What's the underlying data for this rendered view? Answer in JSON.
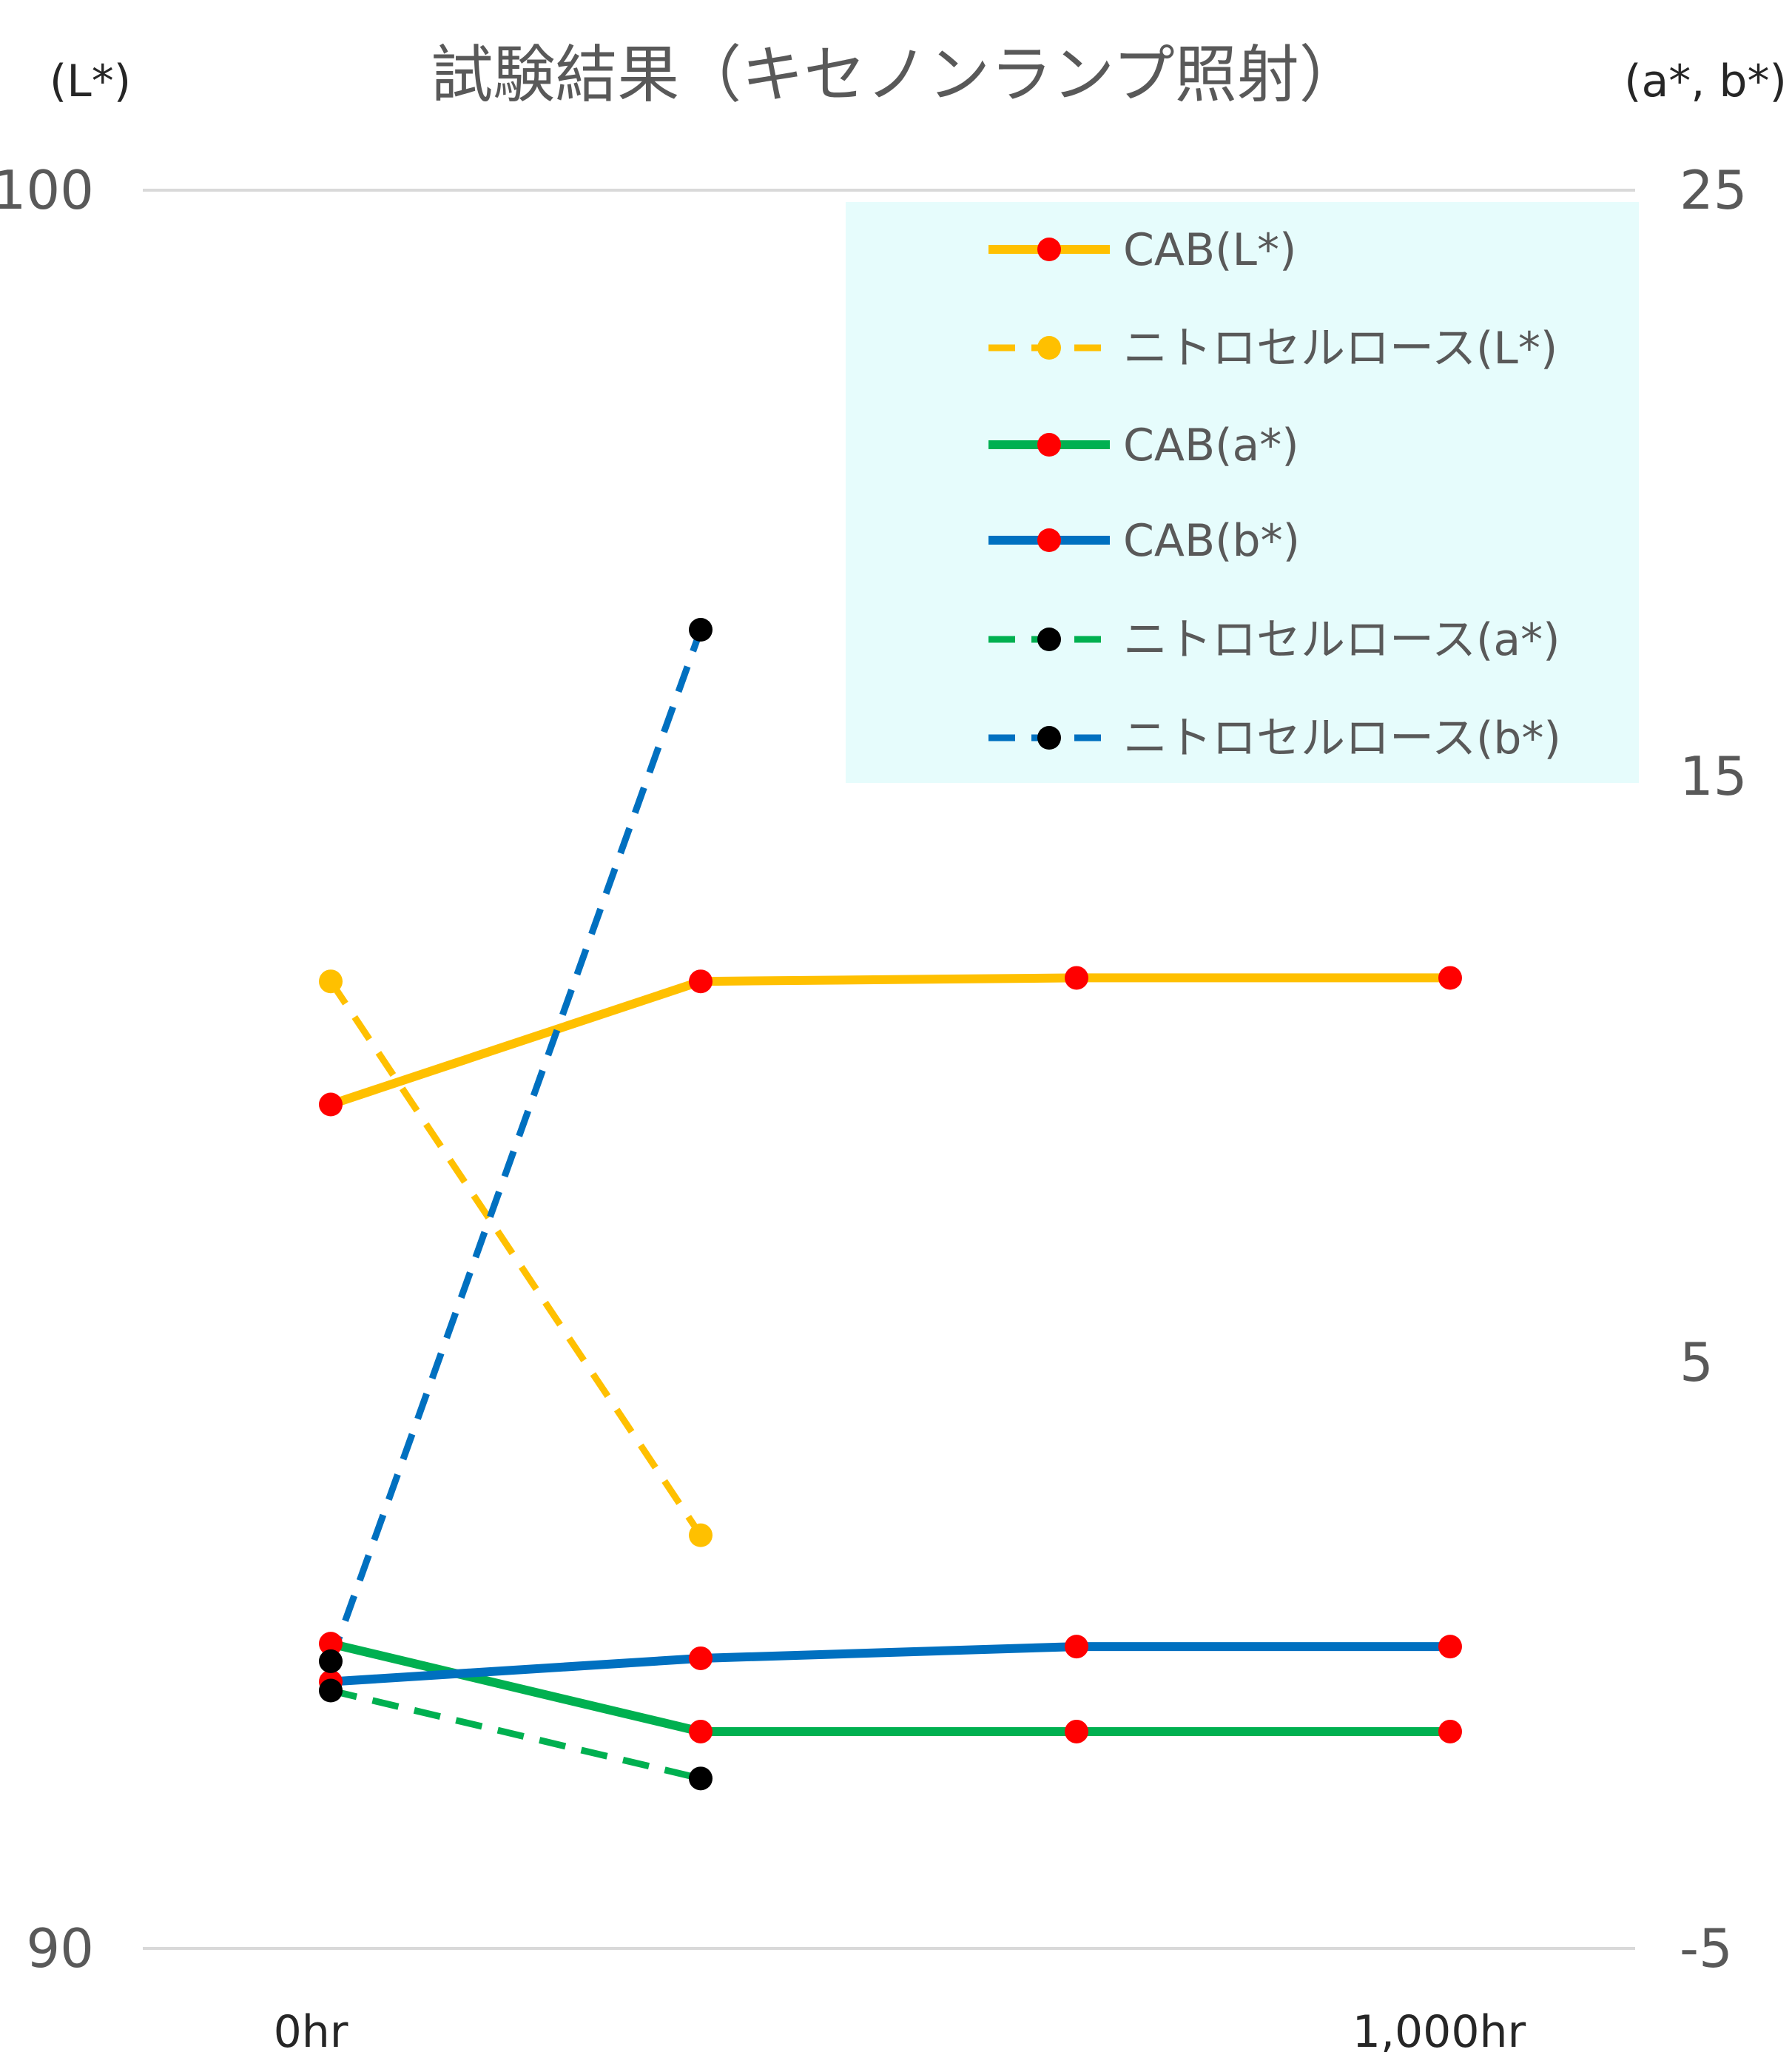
{
  "chart_data": {
    "type": "line",
    "title": "試験結果（キセノンランプ照射）",
    "y_left": {
      "label": "(L*)",
      "range": [
        90,
        100
      ],
      "ticks": [
        "100",
        "90"
      ]
    },
    "y_right": {
      "label": "(a*, b*)",
      "range": [
        -5,
        25
      ],
      "ticks": [
        "25",
        "15",
        "5",
        "-5"
      ]
    },
    "x": [
      "0hr",
      "",
      "",
      "1,000hr"
    ],
    "x_tick_labels": [
      "0hr",
      "1,000hr"
    ],
    "grid": true,
    "legend_position": "top-right",
    "colors": {
      "yellow": "#FFC000",
      "green": "#00B050",
      "blue": "#0070C0",
      "red_marker": "#FF0000",
      "black_marker": "#000000",
      "legend_bg": "#E6FCFC",
      "grid": "#D9D9D9"
    },
    "series": [
      {
        "name": "CAB(L*)",
        "axis": "left",
        "color": "#FFC000",
        "dash": false,
        "marker": "#FF0000",
        "values": [
          94.8,
          95.5,
          95.52,
          95.52
        ]
      },
      {
        "name": "ニトロセルロース(L*)",
        "axis": "left",
        "color": "#FFC000",
        "dash": true,
        "marker": "#FFC000",
        "values": [
          95.5,
          92.35,
          null,
          null
        ]
      },
      {
        "name": "CAB(a*)",
        "axis": "right",
        "color": "#00B050",
        "dash": false,
        "marker": "#FF0000",
        "values": [
          0.2,
          -1.3,
          -1.3,
          -1.3
        ]
      },
      {
        "name": "CAB(b*)",
        "axis": "right",
        "color": "#0070C0",
        "dash": false,
        "marker": "#FF0000",
        "values": [
          -0.45,
          -0.05,
          0.15,
          0.15
        ]
      },
      {
        "name": "ニトロセルロース(a*)",
        "axis": "right",
        "color": "#00B050",
        "dash": true,
        "marker": "#000000",
        "values": [
          -0.6,
          -2.1,
          null,
          null
        ]
      },
      {
        "name": "ニトロセルロース(b*)",
        "axis": "right",
        "color": "#0070C0",
        "dash": true,
        "marker": "#000000",
        "values": [
          -0.1,
          17.5,
          null,
          null
        ]
      }
    ]
  }
}
